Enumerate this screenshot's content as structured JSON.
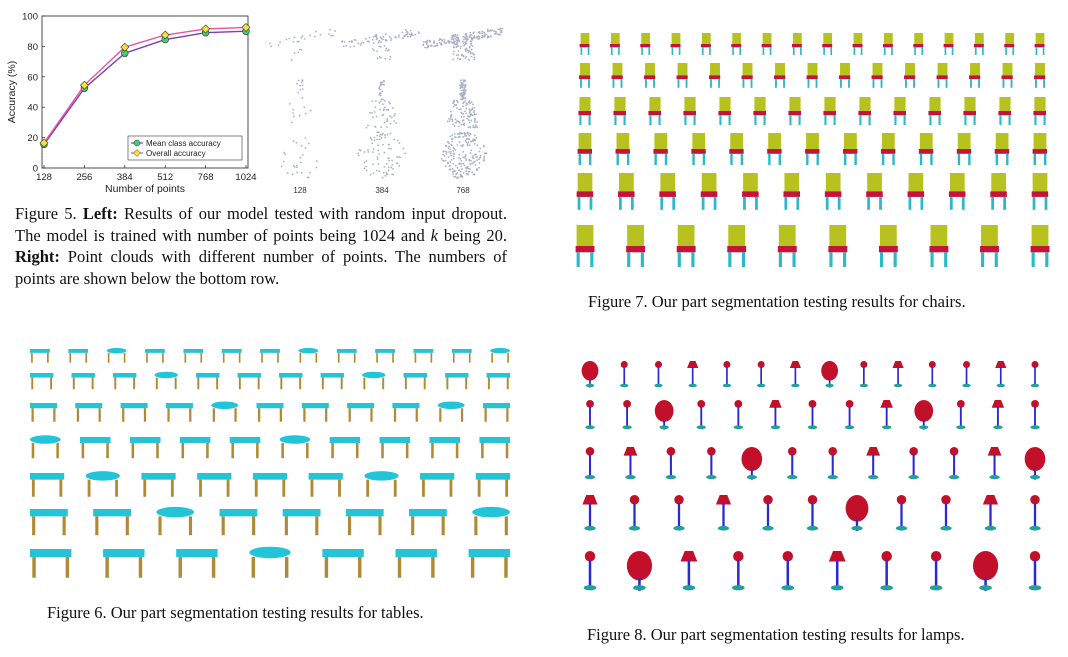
{
  "fig5": {
    "chart_data": {
      "type": "line",
      "x": [
        128,
        256,
        384,
        512,
        768,
        1024
      ],
      "xticks": [
        "128",
        "256",
        "384",
        "512",
        "768",
        "1024"
      ],
      "yticks": [
        "0",
        "20",
        "40",
        "60",
        "80",
        "100"
      ],
      "xlabel": "Number of points",
      "ylabel": "Accuracy (%)",
      "ylim": [
        0,
        100
      ],
      "legend_position": "bottom-right",
      "series": [
        {
          "name": "Mean class accuracy",
          "values": [
            15.5,
            52.5,
            75.5,
            84.5,
            89.0,
            90.0
          ],
          "color": "#7b3fb8",
          "marker_color": "#3fcf6f"
        },
        {
          "name": "Overall accuracy",
          "values": [
            16.5,
            54.5,
            79.5,
            87.5,
            91.5,
            92.5
          ],
          "color": "#e8559c",
          "marker_color": "#f2e33a"
        }
      ]
    },
    "point_labels": [
      "128",
      "384",
      "768"
    ],
    "caption": {
      "prefix": "Figure 5. ",
      "left_bold": "Left:",
      "left_text": " Results of our model tested with random input dropout. The model is trained with number of points being 1024 and ",
      "k": "k",
      "k_text": " being 20. ",
      "right_bold": "Right:",
      "right_text": " Point clouds with different number of points. The numbers of points are shown below the bottom row."
    }
  },
  "fig6": {
    "caption": "Figure 6. Our part segmentation testing results for tables."
  },
  "fig7": {
    "caption": "Figure 7. Our part segmentation testing results for chairs."
  },
  "fig8": {
    "caption": "Figure 8. Our part segmentation testing results for lamps."
  },
  "colors": {
    "chair_back": "#b7c21f",
    "chair_seat": "#c7123c",
    "chair_leg": "#2bb8c9",
    "table_top": "#22c4d8",
    "table_leg": "#b08a36",
    "lamp_shade": "#c2102a",
    "lamp_stem": "#2a2ad0",
    "lamp_base": "#22a0a0",
    "cloud": "#a9b2c4"
  }
}
